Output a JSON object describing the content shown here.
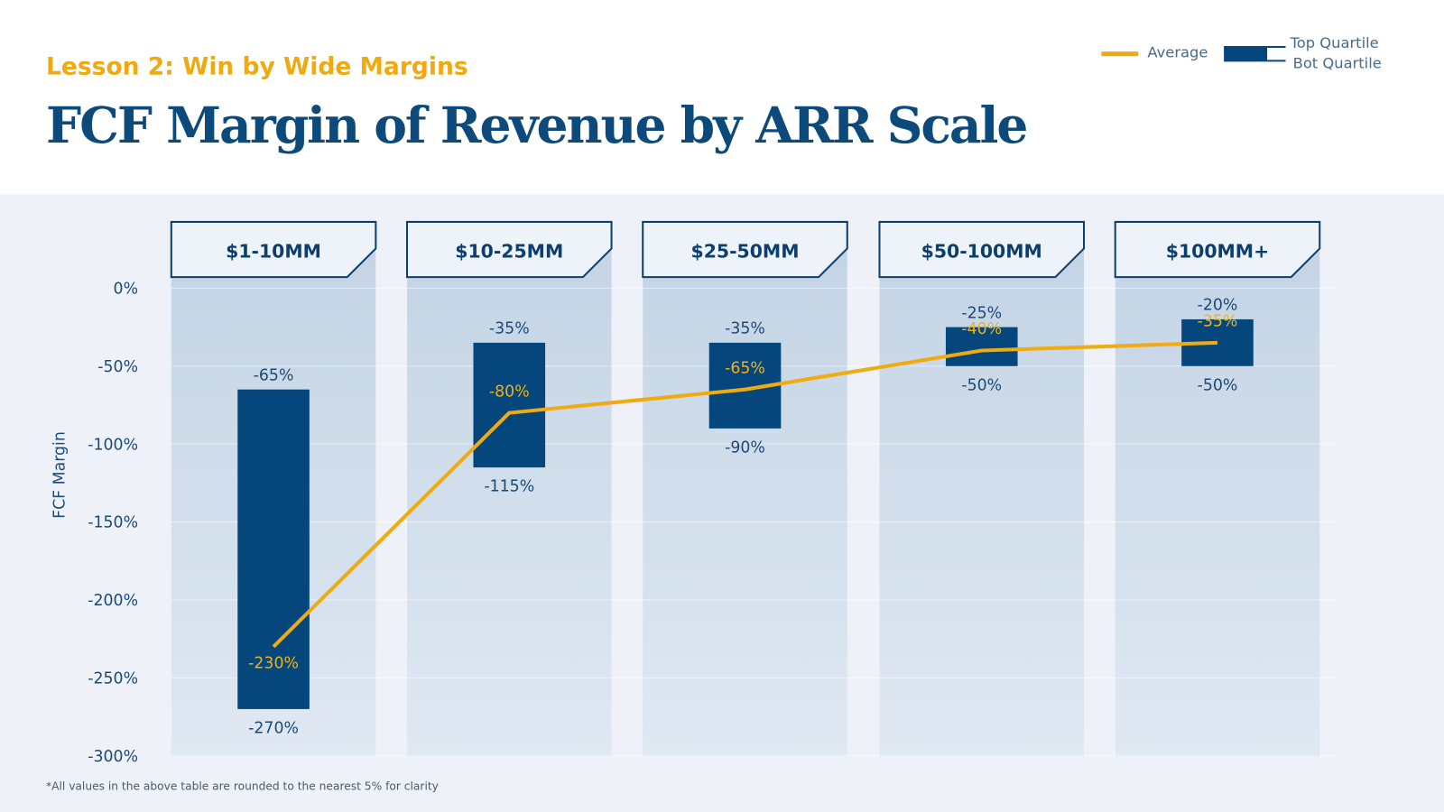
{
  "subtitle": "Lesson 2: Win by Wide Margins",
  "title": "FCF Margin of Revenue by ARR Scale",
  "footnote": "*All values in the above table are rounded to the nearest 5% for clarity",
  "legend": {
    "average": "Average",
    "top": "Top Quartile",
    "bottom": "Bot Quartile"
  },
  "colors": {
    "bar": "#05467c",
    "average": "#f0aa12",
    "title": "#0d4a7c",
    "subtitle": "#f0a90f"
  },
  "chart_data": {
    "type": "bar",
    "subtype": "floating range bars with average line",
    "ylabel": "FCF Margin",
    "ylim": [
      -300,
      0
    ],
    "yticks": [
      0,
      -50,
      -100,
      -150,
      -200,
      -250,
      -300
    ],
    "ytick_labels": [
      "0%",
      "-50%",
      "-100%",
      "-150%",
      "-200%",
      "-250%",
      "-300%"
    ],
    "grid": true,
    "legend_position": "top-right",
    "categories": [
      "$1-10MM",
      "$10-25MM",
      "$25-50MM",
      "$50-100MM",
      "$100MM+"
    ],
    "series": [
      {
        "name": "Top Quartile",
        "values": [
          -65,
          -35,
          -35,
          -25,
          -20
        ]
      },
      {
        "name": "Bot Quartile",
        "values": [
          -270,
          -115,
          -90,
          -50,
          -50
        ]
      },
      {
        "name": "Average",
        "values": [
          -230,
          -80,
          -65,
          -40,
          -35
        ]
      }
    ]
  }
}
